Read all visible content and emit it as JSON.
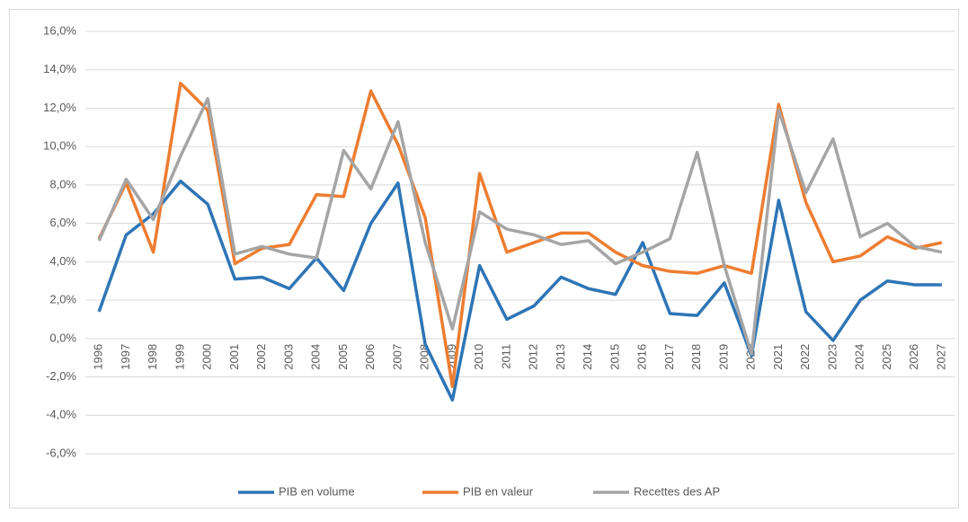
{
  "chart_data": {
    "type": "line",
    "categories": [
      "1996",
      "1997",
      "1998",
      "1999",
      "2000",
      "2001",
      "2002",
      "2003",
      "2004",
      "2005",
      "2006",
      "2007",
      "2008",
      "2009",
      "2010",
      "2011",
      "2012",
      "2013",
      "2014",
      "2015",
      "2016",
      "2017",
      "2018",
      "2019",
      "2020",
      "2021",
      "2022",
      "2023",
      "2024",
      "2025",
      "2026",
      "2027"
    ],
    "series": [
      {
        "name": "PIB en volume",
        "color": "#2e75b6",
        "values": [
          1.4,
          5.4,
          6.5,
          8.2,
          7.0,
          3.1,
          3.2,
          2.6,
          4.2,
          2.5,
          6.0,
          8.1,
          -0.3,
          -3.2,
          3.8,
          1.0,
          1.7,
          3.2,
          2.6,
          2.3,
          5.0,
          1.3,
          1.2,
          2.9,
          -0.9,
          7.2,
          1.4,
          -0.1,
          2.0,
          3.0,
          2.8,
          2.8
        ]
      },
      {
        "name": "PIB en valeur",
        "color": "#ed7d31",
        "values": [
          5.2,
          8.1,
          4.5,
          13.3,
          11.9,
          3.9,
          4.7,
          4.9,
          7.5,
          7.4,
          12.9,
          10.1,
          6.3,
          -2.5,
          8.6,
          4.5,
          5.0,
          5.5,
          5.5,
          4.5,
          3.8,
          3.5,
          3.4,
          3.8,
          3.4,
          12.2,
          7.1,
          4.0,
          4.3,
          5.3,
          4.7,
          5.0
        ]
      },
      {
        "name": "Recettes des AP",
        "color": "#a5a5a5",
        "values": [
          5.1,
          8.3,
          6.2,
          9.5,
          12.5,
          4.4,
          4.8,
          4.4,
          4.2,
          9.8,
          7.8,
          11.3,
          5.0,
          0.5,
          6.6,
          5.7,
          5.4,
          4.9,
          5.1,
          3.9,
          4.5,
          5.2,
          9.7,
          3.8,
          -0.8,
          11.9,
          7.6,
          10.4,
          5.3,
          6.0,
          4.8,
          4.5
        ]
      }
    ],
    "ylim": [
      -6,
      16
    ],
    "yticks": [
      {
        "value": -6,
        "label": "-6,0%"
      },
      {
        "value": -4,
        "label": "-4,0%"
      },
      {
        "value": -2,
        "label": "-2,0%"
      },
      {
        "value": 0,
        "label": "0,0%"
      },
      {
        "value": 2,
        "label": "2,0%"
      },
      {
        "value": 4,
        "label": "4,0%"
      },
      {
        "value": 6,
        "label": "6,0%"
      },
      {
        "value": 8,
        "label": "8,0%"
      },
      {
        "value": 10,
        "label": "10,0%"
      },
      {
        "value": 12,
        "label": "12,0%"
      },
      {
        "value": 14,
        "label": "14,0%"
      },
      {
        "value": 16,
        "label": "16,0%"
      }
    ],
    "grid": true,
    "legend": "bottom"
  }
}
